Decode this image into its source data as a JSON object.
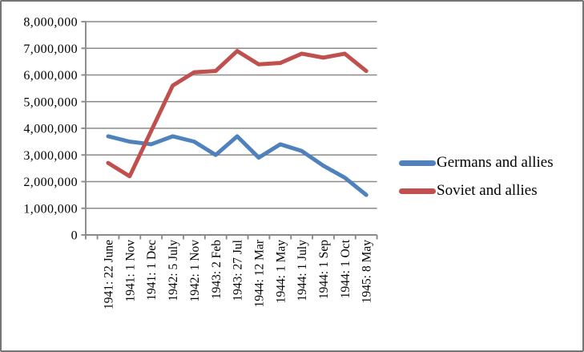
{
  "chart_data": {
    "type": "line",
    "categories": [
      "1941: 22 June",
      "1941: 1 Nov",
      "1941: 1 Dec",
      "1942: 5 July",
      "1942: 1 Nov",
      "1943: 2 Feb",
      "1943: 27 Jul",
      "1944: 12 Mar",
      "1944: 1 May",
      "1944: 1 July",
      "1944: 1 Sep",
      "1944: 1 Oct",
      "1945: 8 May"
    ],
    "series": [
      {
        "name": "Germans and allies",
        "color": "#4F81BD",
        "values": [
          3700000,
          3500000,
          3400000,
          3700000,
          3500000,
          3000000,
          3700000,
          2900000,
          3400000,
          3150000,
          2600000,
          2150000,
          1500000
        ]
      },
      {
        "name": "Soviet and allies",
        "color": "#C0504D",
        "values": [
          2700000,
          2200000,
          3900000,
          5600000,
          6100000,
          6150000,
          6900000,
          6400000,
          6450000,
          6800000,
          6650000,
          6800000,
          6150000
        ]
      }
    ],
    "ylim": [
      0,
      8000000
    ],
    "y_tick_step": 1000000,
    "y_tick_labels": [
      "0",
      "1,000,000",
      "2,000,000",
      "3,000,000",
      "4,000,000",
      "5,000,000",
      "6,000,000",
      "7,000,000",
      "8,000,000"
    ],
    "grid": "horizontal",
    "legend_position": "right",
    "axis_color": "#8a8a8a",
    "text_color": "#000000",
    "background_color": "#ffffff"
  }
}
